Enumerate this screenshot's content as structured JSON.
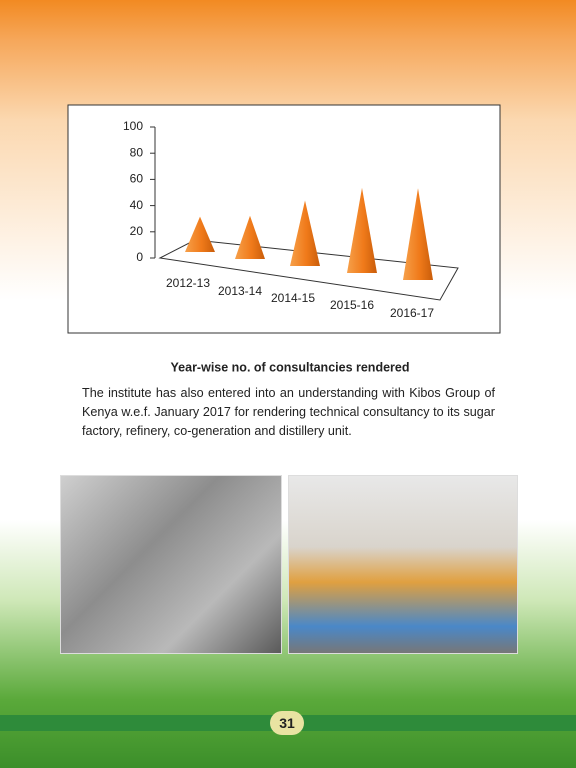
{
  "chart_data": {
    "type": "cone",
    "title": "Year-wise no. of consultancies rendered",
    "categories": [
      "2012-13",
      "2013-14",
      "2014-15",
      "2015-16",
      "2016-17"
    ],
    "values": [
      27,
      33,
      50,
      65,
      70
    ],
    "color": "#f07a1a",
    "ylim": [
      0,
      100
    ],
    "yticks": [
      0,
      20,
      40,
      60,
      80,
      100
    ]
  },
  "paragraph": "The institute has also entered into an understanding with Kibos Group of Kenya w.e.f. January 2017 for rendering technical consultancy to its sugar factory, refinery, co-generation and distillery unit.",
  "page_number": "31"
}
